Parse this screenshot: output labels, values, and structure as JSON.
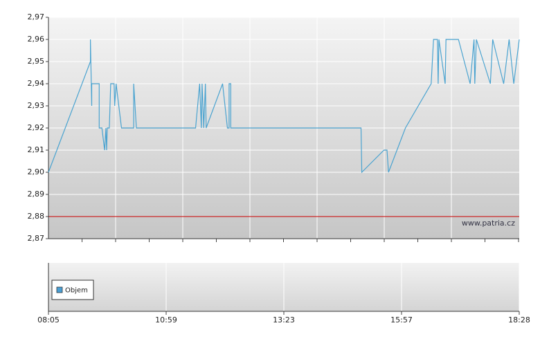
{
  "chart_data": [
    {
      "type": "line",
      "x": [
        485,
        547,
        547,
        549,
        549,
        560,
        560,
        564,
        568,
        570,
        571,
        572,
        575,
        576,
        577,
        582,
        583,
        585,
        593,
        611,
        611,
        615,
        695,
        700,
        702,
        703,
        705,
        707,
        708,
        728,
        734,
        736,
        736,
        738,
        738,
        904,
        905,
        934,
        938,
        940,
        962,
        995,
        998,
        1003,
        1004,
        1005,
        1013,
        1014,
        1030,
        1045,
        1050,
        1051,
        1053,
        1071,
        1074,
        1088,
        1095,
        1101,
        1108
      ],
      "values": [
        2.9,
        2.95,
        2.96,
        2.93,
        2.94,
        2.94,
        2.92,
        2.92,
        2.91,
        2.92,
        2.91,
        2.92,
        2.92,
        2.93,
        2.94,
        2.94,
        2.93,
        2.94,
        2.92,
        2.92,
        2.94,
        2.92,
        2.92,
        2.94,
        2.92,
        2.94,
        2.92,
        2.94,
        2.92,
        2.94,
        2.92,
        2.92,
        2.94,
        2.94,
        2.92,
        2.92,
        2.9,
        2.91,
        2.91,
        2.9,
        2.92,
        2.94,
        2.96,
        2.96,
        2.94,
        2.96,
        2.94,
        2.96,
        2.96,
        2.94,
        2.96,
        2.94,
        2.96,
        2.94,
        2.96,
        2.94,
        2.96,
        2.94,
        2.96
      ],
      "color": "#4aa3d0",
      "ylim": [
        2.87,
        2.97
      ],
      "yticks": [
        {
          "value": 2.87,
          "label": "2,87"
        },
        {
          "value": 2.88,
          "label": "2,88"
        },
        {
          "value": 2.89,
          "label": "2,89"
        },
        {
          "value": 2.9,
          "label": "2,90"
        },
        {
          "value": 2.91,
          "label": "2,91"
        },
        {
          "value": 2.92,
          "label": "2,92"
        },
        {
          "value": 2.93,
          "label": "2,93"
        },
        {
          "value": 2.94,
          "label": "2,94"
        },
        {
          "value": 2.95,
          "label": "2,95"
        },
        {
          "value": 2.96,
          "label": "2,96"
        },
        {
          "value": 2.97,
          "label": "2,97"
        }
      ],
      "grid": true,
      "reference_line": 2.88,
      "reference_color": "#cc0000",
      "annotation": "www.patria.cz"
    },
    {
      "type": "bar",
      "series": [
        {
          "name": "Objem",
          "color": "#4a9fd4",
          "values": []
        }
      ],
      "legend": "left",
      "xlim": [
        485,
        1108
      ],
      "xticks": [
        {
          "value": 485,
          "label": "08:05"
        },
        {
          "value": 659,
          "label": "10:59"
        },
        {
          "value": 803,
          "label": "13:23"
        },
        {
          "value": 957,
          "label": "15:57"
        },
        {
          "value": 1108,
          "label": "18:28"
        }
      ],
      "grid": true
    }
  ]
}
